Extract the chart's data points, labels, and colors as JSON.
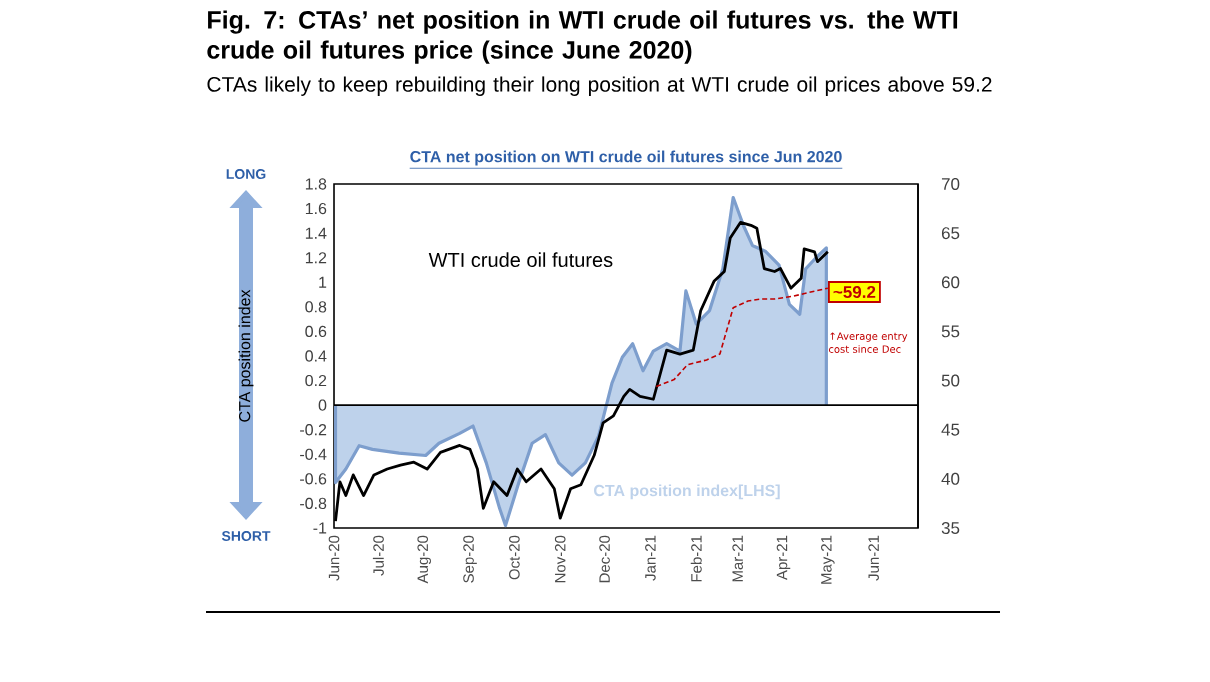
{
  "chart_data": {
    "type": "line",
    "title": "Fig. 7: CTAs’ net position in WTI crude oil futures vs. the WTI crude oil futures price (since June 2020)",
    "subtitle": "CTAs likely to keep rebuilding their long position at WTI crude oil prices above 59.2",
    "ylabel": "CTA position index",
    "annotations": [
      "CTA net position on WTI crude oil futures since Jun 2020",
      "LONG",
      "SHORT",
      "↑Average entry cost since Dec",
      "~59.2"
    ],
    "xlim": [
      "2020-06-01",
      "2021-07-01"
    ],
    "xticks": [
      {
        "value": "2020-06-01",
        "label": "Jun-20"
      },
      {
        "value": "2020-07-01",
        "label": "Jul-20"
      },
      {
        "value": "2020-08-01",
        "label": "Aug-20"
      },
      {
        "value": "2020-09-01",
        "label": "Sep-20"
      },
      {
        "value": "2020-10-01",
        "label": "Oct-20"
      },
      {
        "value": "2020-11-01",
        "label": "Nov-20"
      },
      {
        "value": "2020-12-01",
        "label": "Dec-20"
      },
      {
        "value": "2021-01-01",
        "label": "Jan-21"
      },
      {
        "value": "2021-02-01",
        "label": "Feb-21"
      },
      {
        "value": "2021-03-01",
        "label": "Mar-21"
      },
      {
        "value": "2021-04-01",
        "label": "Apr-21"
      },
      {
        "value": "2021-05-01",
        "label": "May-21"
      },
      {
        "value": "2021-06-01",
        "label": "Jun-21"
      }
    ],
    "ylim": [
      -1,
      1.8
    ],
    "yticks": [
      -1,
      -0.8,
      -0.6,
      -0.4,
      -0.2,
      0,
      0.2,
      0.4,
      0.6,
      0.8,
      1,
      1.2,
      1.4,
      1.6,
      1.8
    ],
    "y2lim": [
      35,
      70
    ],
    "y2ticks": [
      35,
      40,
      45,
      50,
      55,
      60,
      65,
      70
    ],
    "ref_lines": [
      {
        "axis": "y",
        "value": 0,
        "color": "#000000"
      }
    ],
    "series": [
      {
        "name": "CTA position index[LHS]",
        "type": "area",
        "color": "#bed2eb",
        "x": [
          "2020-06-02",
          "2020-06-09",
          "2020-06-18",
          "2020-06-27",
          "2020-07-15",
          "2020-08-02",
          "2020-08-11",
          "2020-08-25",
          "2020-09-03",
          "2020-09-12",
          "2020-09-21",
          "2020-09-25",
          "2020-10-04",
          "2020-10-13",
          "2020-10-22",
          "2020-10-31",
          "2020-11-09",
          "2020-11-18",
          "2020-11-27",
          "2020-12-06",
          "2020-12-13",
          "2020-12-20",
          "2020-12-27",
          "2021-01-03",
          "2021-01-12",
          "2021-01-21",
          "2021-01-25",
          "2021-02-01",
          "2021-02-10",
          "2021-02-19",
          "2021-02-26",
          "2021-03-05",
          "2021-03-11",
          "2021-03-20",
          "2021-03-29",
          "2021-04-05",
          "2021-04-12",
          "2021-04-16",
          "2021-04-23",
          "2021-04-30"
        ],
        "values": [
          -0.63,
          -0.52,
          -0.33,
          -0.36,
          -0.39,
          -0.41,
          -0.31,
          -0.23,
          -0.17,
          -0.47,
          -0.84,
          -0.98,
          -0.63,
          -0.31,
          -0.24,
          -0.47,
          -0.57,
          -0.47,
          -0.25,
          0.18,
          0.39,
          0.5,
          0.28,
          0.44,
          0.5,
          0.44,
          0.93,
          0.66,
          0.77,
          1.11,
          1.69,
          1.46,
          1.3,
          1.25,
          1.14,
          0.82,
          0.74,
          1.11,
          1.2,
          1.28
        ]
      },
      {
        "name": "WTI crude oil futures",
        "axis": "y2",
        "color": "#000000",
        "x": [
          "2020-06-02",
          "2020-06-05",
          "2020-06-09",
          "2020-06-14",
          "2020-06-21",
          "2020-06-28",
          "2020-07-07",
          "2020-07-16",
          "2020-07-25",
          "2020-08-03",
          "2020-08-12",
          "2020-08-25",
          "2020-09-01",
          "2020-09-06",
          "2020-09-10",
          "2020-09-17",
          "2020-09-26",
          "2020-10-03",
          "2020-10-09",
          "2020-10-19",
          "2020-10-28",
          "2020-11-01",
          "2020-11-08",
          "2020-11-15",
          "2020-11-24",
          "2020-11-30",
          "2020-12-07",
          "2020-12-14",
          "2020-12-18",
          "2020-12-25",
          "2021-01-03",
          "2021-01-12",
          "2021-01-21",
          "2021-01-30",
          "2021-02-04",
          "2021-02-13",
          "2021-02-20",
          "2021-02-24",
          "2021-03-03",
          "2021-03-10",
          "2021-03-14",
          "2021-03-19",
          "2021-03-26",
          "2021-03-30",
          "2021-04-06",
          "2021-04-13",
          "2021-04-15",
          "2021-04-22",
          "2021-04-24",
          "2021-05-01"
        ],
        "values": [
          35.7,
          39.7,
          38.3,
          40.4,
          38.3,
          40.4,
          41.0,
          41.4,
          41.7,
          41.0,
          42.7,
          43.4,
          43.0,
          41.0,
          37.0,
          39.7,
          38.3,
          41.0,
          39.7,
          41.0,
          39.0,
          36.0,
          39.0,
          39.4,
          42.4,
          45.7,
          46.4,
          48.4,
          49.1,
          48.4,
          48.1,
          53.1,
          52.7,
          53.1,
          57.1,
          60.1,
          61.1,
          64.5,
          66.1,
          65.8,
          65.5,
          61.4,
          61.1,
          61.4,
          59.4,
          60.4,
          63.4,
          63.1,
          62.1,
          63.1
        ]
      },
      {
        "axis": "y2",
        "color": "#c00000",
        "line_style": "dashed",
        "x": [
          "2021-01-05",
          "2021-01-17",
          "2021-01-26",
          "2021-02-08",
          "2021-02-17",
          "2021-02-26",
          "2021-03-08",
          "2021-03-17",
          "2021-03-26",
          "2021-04-08",
          "2021-04-22",
          "2021-05-01"
        ],
        "values": [
          49.4,
          50.1,
          51.6,
          52.1,
          52.7,
          57.4,
          58.1,
          58.3,
          58.3,
          58.6,
          59.1,
          59.4
        ]
      }
    ]
  }
}
